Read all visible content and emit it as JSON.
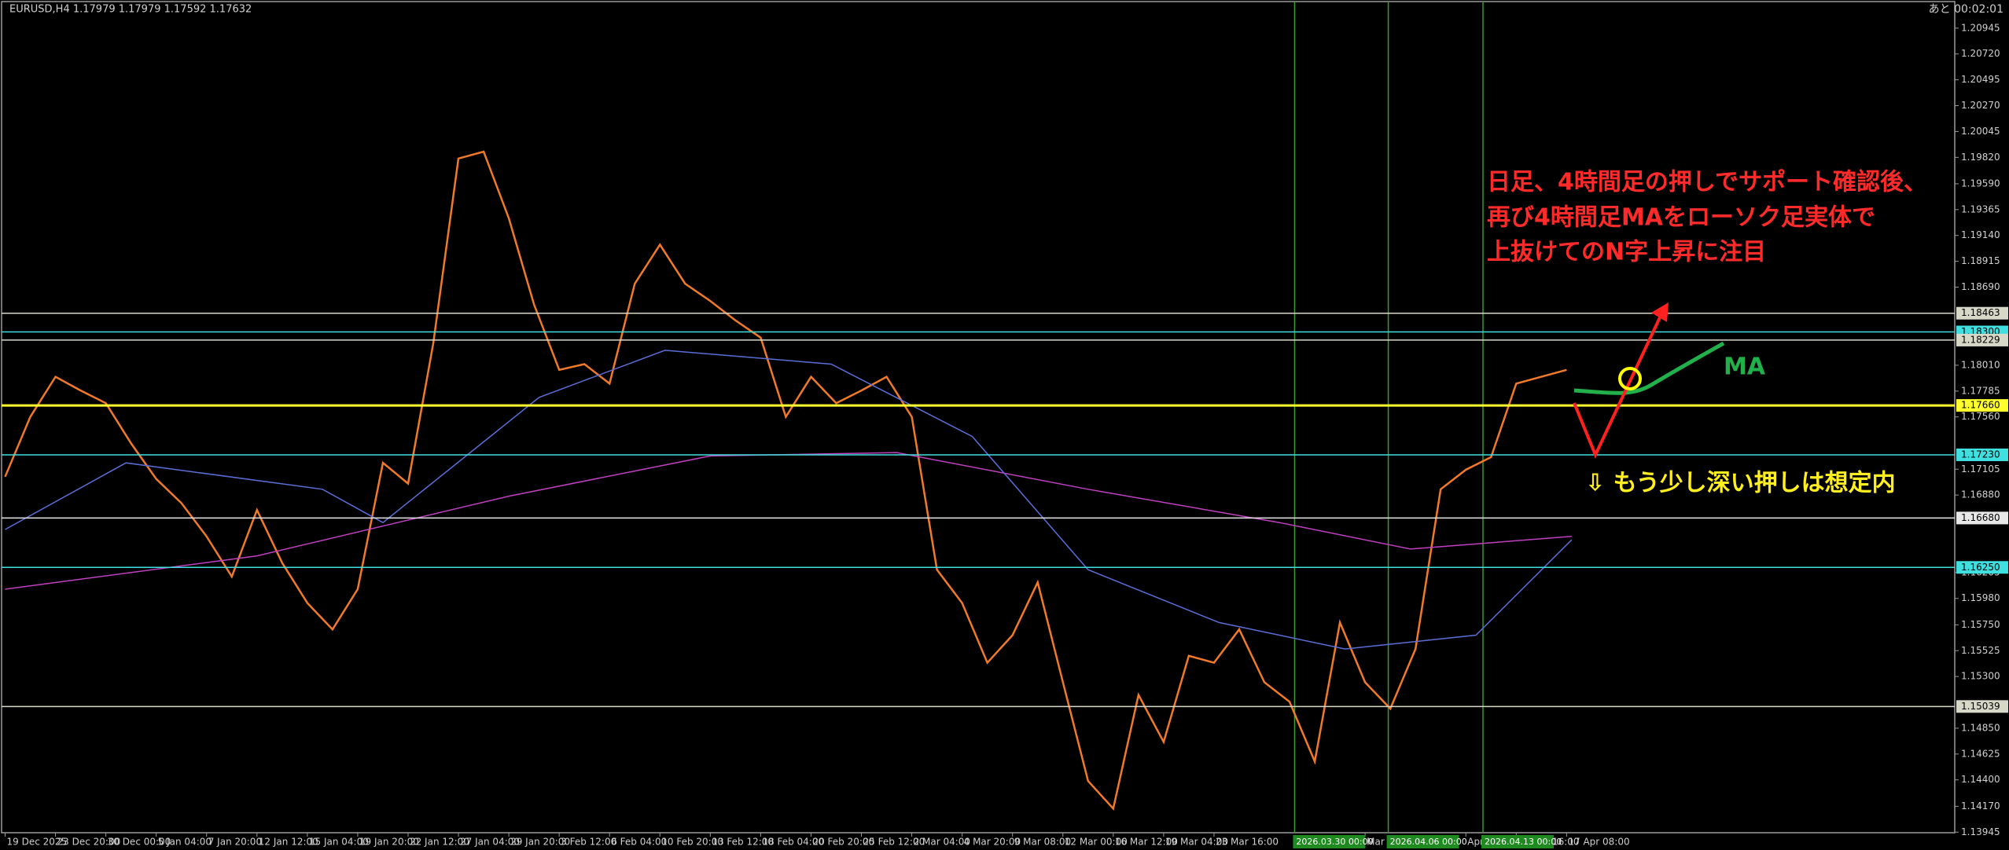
{
  "chart_data": {
    "type": "line",
    "title": "EURUSD,H4  1.17979 1.17979 1.17592 1.17632",
    "timer": "あと 00:02:01",
    "categories": [
      "19 Dec 2025",
      "23 Dec 20:00",
      "30 Dec 00:00",
      "5 Jan 04:00",
      "7 Jan 20:00",
      "12 Jan 12:00",
      "15 Jan 04:00",
      "19 Jan 20:00",
      "22 Jan 12:00",
      "27 Jan 04:00",
      "29 Jan 20:00",
      "3 Feb 12:00",
      "6 Feb 04:00",
      "10 Feb 20:00",
      "13 Feb 12:00",
      "18 Feb 04:00",
      "20 Feb 20:00",
      "25 Feb 12:00",
      "2 Mar 04:00",
      "4 Mar 20:00",
      "9 Mar 08:00",
      "12 Mar 00:00",
      "16 Mar 12:00",
      "19 Mar 04:00",
      "23 Mar 16:00",
      null,
      null,
      "Mar 00:00",
      null,
      "Apr 08:00",
      "14 Apr 16:00",
      "17 Apr 08:00"
    ],
    "series": [
      {
        "name": "EURUSD",
        "color": "#f07a2a",
        "x": [
          0,
          0.5,
          1,
          1.5,
          2,
          2.5,
          3,
          3.5,
          4,
          4.5,
          5,
          5.5,
          6,
          6.5,
          7,
          7.5,
          8,
          8.5,
          9,
          9.5,
          10,
          10.5,
          11,
          11.5,
          12,
          12.5,
          13,
          13.5,
          14,
          14.5,
          15,
          15.5,
          16,
          16.5,
          17,
          17.5,
          18,
          18.5,
          19,
          19.5,
          20,
          20.5,
          21,
          21.5,
          22,
          22.5,
          23,
          23.5,
          24,
          24.5,
          25,
          25.5,
          26,
          26.5,
          27,
          27.5,
          28,
          28.5,
          29,
          29.5,
          30,
          30.5,
          31
        ],
        "values": [
          1.1704,
          1.1756,
          1.1791,
          1.1779,
          1.1768,
          1.1733,
          1.1702,
          1.1681,
          1.1652,
          1.1617,
          1.1675,
          1.1629,
          1.1594,
          1.1571,
          1.1606,
          1.1716,
          1.1698,
          1.182,
          1.1981,
          1.1987,
          1.1929,
          1.1854,
          1.1797,
          1.1802,
          1.1785,
          1.1872,
          1.1906,
          1.1872,
          1.1857,
          1.184,
          1.1825,
          1.1756,
          1.1791,
          1.1768,
          1.1779,
          1.1791,
          1.1756,
          1.1623,
          1.1594,
          1.1542,
          1.1566,
          1.1612,
          1.1525,
          1.1439,
          1.1415,
          1.1514,
          1.1473,
          1.1548,
          1.1542,
          1.1571,
          1.1525,
          1.1508,
          1.1456,
          1.1577,
          1.1525,
          1.1502,
          1.1554,
          1.1693,
          1.171,
          1.1721,
          1.1785,
          1.1791,
          1.1797
        ]
      },
      {
        "name": "MA-slow",
        "color": "#c040c0",
        "x": [
          0,
          5,
          10,
          14,
          17.7,
          21.5,
          25.3,
          27.9,
          31.1
        ],
        "values": [
          1.1606,
          1.1635,
          1.1687,
          1.1722,
          1.1725,
          1.1693,
          1.1664,
          1.1641,
          1.1652
        ]
      },
      {
        "name": "MA-mid",
        "color": "#5a6ed8",
        "x": [
          0,
          2.4,
          6.3,
          7.5,
          10.6,
          13.1,
          16.4,
          19.2,
          21.5,
          24.1,
          26.6,
          29.2,
          31.1
        ],
        "values": [
          1.1658,
          1.1716,
          1.1693,
          1.1664,
          1.1773,
          1.1814,
          1.1802,
          1.1739,
          1.1623,
          1.1577,
          1.1554,
          1.1566,
          1.1649
        ]
      }
    ],
    "ylim": [
      1.1394,
      1.2119
    ],
    "yticks": [
      1.20945,
      {
        "value": 1.2072,
        "label": "1.20720"
      },
      1.20495,
      {
        "value": 1.2027,
        "label": "1.20270"
      },
      1.20045,
      {
        "value": 1.1982,
        "label": "1.19820"
      },
      {
        "value": 1.1959,
        "label": "1.19590"
      },
      1.19365,
      {
        "value": 1.1914,
        "label": "1.19140"
      },
      1.18915,
      {
        "value": 1.1869,
        "label": "1.18690"
      },
      {
        "value": 1.1801,
        "label": "1.18010"
      },
      1.17785,
      {
        "value": 1.1756,
        "label": "1.17560"
      },
      1.17105,
      {
        "value": 1.1688,
        "label": "1.16880"
      },
      1.16205,
      {
        "value": 1.1598,
        "label": "1.15980"
      },
      {
        "value": 1.1575,
        "label": "1.15750"
      },
      1.15525,
      {
        "value": 1.153,
        "label": "1.15300"
      },
      {
        "value": 1.1485,
        "label": "1.14850"
      },
      1.14625,
      {
        "value": 1.144,
        "label": "1.14400"
      },
      {
        "value": 1.1417,
        "label": "1.14170"
      },
      1.13945
    ],
    "grid": false,
    "levels": [
      {
        "value": 1.18463,
        "color": "#d8d8c8"
      },
      {
        "value": 1.183,
        "label": "1.18300",
        "color": "#40e0e0"
      },
      {
        "value": 1.18229,
        "color": "#d8d8c8"
      },
      {
        "value": 1.1766,
        "label": "1.17660",
        "color": "#ffff30"
      },
      {
        "value": 1.1723,
        "label": "1.17230",
        "color": "#40e0e0"
      },
      {
        "value": 1.1668,
        "label": "1.16680",
        "color": "#e8e8e8"
      },
      {
        "value": 1.1625,
        "label": "1.16250",
        "color": "#40e0e0"
      },
      {
        "value": 1.15039,
        "color": "#d8d8c8"
      }
    ],
    "vlines": [
      {
        "x": 25.6,
        "label": "2026.03.30 00:00"
      },
      {
        "x": 27.46,
        "label": "2026.04.06 00:00"
      },
      {
        "x": 29.34,
        "label": "2026.04.13 00:00"
      }
    ],
    "annotations": [
      "日足、4時間足の押しでサポート確認後、",
      "再び4時間足MAをローソク足実体で",
      "上抜けてのN字上昇に注目",
      "⇩ もう少し深い押しは想定内",
      "MA"
    ]
  }
}
